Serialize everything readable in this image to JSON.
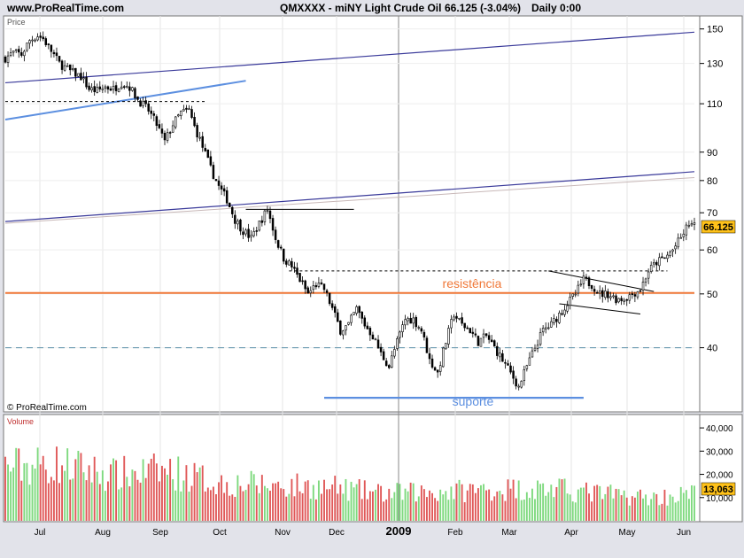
{
  "header": {
    "site": "www.ProRealTime.com",
    "instrument": "QMXXXX - miNY Light Crude Oil",
    "last_change": "66.125 (-3.04%)",
    "period": "Daily  0:00"
  },
  "price_panel": {
    "label": "Price",
    "watermark": "© ProRealTime.com"
  },
  "volume_panel": {
    "label": "Volume"
  },
  "annotations": {
    "resistance": "resistência",
    "support": "suporte"
  },
  "colors": {
    "up": "#ffffff",
    "down": "#000000",
    "orange": "#f07838",
    "blue_line": "#5c8fe0",
    "navy_line": "#3a3a9a",
    "volume_green": "#7ed97e",
    "volume_red": "#e05858",
    "price_tag": "#ffc21a"
  },
  "chart_data": [
    {
      "type": "candlestick",
      "title": "QMXXXX - miNY Light Crude Oil",
      "yscale": "log",
      "ylim": [
        31,
        156
      ],
      "yticks": [
        40,
        50,
        60,
        70,
        80,
        90,
        110,
        130,
        150
      ],
      "last_value": "66.125",
      "months": [
        "Jul",
        "Aug",
        "Sep",
        "Oct",
        "Nov",
        "Dec",
        "2009",
        "Feb",
        "Mar",
        "Apr",
        "May",
        "Jun"
      ],
      "anchors": [
        [
          0,
          133
        ],
        [
          3,
          136
        ],
        [
          6,
          135
        ],
        [
          9,
          143
        ],
        [
          12,
          146
        ],
        [
          14,
          144
        ],
        [
          17,
          137
        ],
        [
          20,
          130
        ],
        [
          24,
          126
        ],
        [
          28,
          123
        ],
        [
          31,
          117
        ],
        [
          34,
          116
        ],
        [
          37,
          118
        ],
        [
          40,
          117
        ],
        [
          43,
          120
        ],
        [
          46,
          118
        ],
        [
          49,
          112
        ],
        [
          53,
          107
        ],
        [
          56,
          101
        ],
        [
          59,
          94
        ],
        [
          62,
          101
        ],
        [
          65,
          106
        ],
        [
          68,
          107
        ],
        [
          70,
          100
        ],
        [
          73,
          92
        ],
        [
          76,
          84
        ],
        [
          79,
          78
        ],
        [
          82,
          74
        ],
        [
          85,
          68
        ],
        [
          88,
          65
        ],
        [
          91,
          63
        ],
        [
          94,
          67
        ],
        [
          97,
          71
        ],
        [
          100,
          63
        ],
        [
          103,
          58
        ],
        [
          106,
          56
        ],
        [
          109,
          53
        ],
        [
          112,
          50
        ],
        [
          115,
          52
        ],
        [
          118,
          51
        ],
        [
          121,
          47
        ],
        [
          124,
          43
        ],
        [
          127,
          44
        ],
        [
          130,
          47
        ],
        [
          133,
          44
        ],
        [
          136,
          42
        ],
        [
          139,
          39
        ],
        [
          142,
          37
        ],
        [
          145,
          41
        ],
        [
          148,
          45
        ],
        [
          151,
          45
        ],
        [
          154,
          43
        ],
        [
          157,
          38
        ],
        [
          160,
          36
        ],
        [
          163,
          41
        ],
        [
          166,
          46
        ],
        [
          169,
          44
        ],
        [
          172,
          43
        ],
        [
          175,
          41
        ],
        [
          178,
          42
        ],
        [
          181,
          40
        ],
        [
          184,
          38
        ],
        [
          187,
          36
        ],
        [
          190,
          34
        ],
        [
          193,
          37
        ],
        [
          196,
          40
        ],
        [
          199,
          43
        ],
        [
          202,
          44
        ],
        [
          205,
          46
        ],
        [
          208,
          48
        ],
        [
          211,
          50
        ],
        [
          214,
          53
        ],
        [
          217,
          52
        ],
        [
          220,
          50
        ],
        [
          223,
          50
        ],
        [
          226,
          49
        ],
        [
          229,
          49
        ],
        [
          232,
          50
        ],
        [
          235,
          51
        ],
        [
          238,
          55
        ],
        [
          241,
          57
        ],
        [
          244,
          58
        ],
        [
          247,
          60
        ],
        [
          250,
          63
        ],
        [
          253,
          67
        ],
        [
          255,
          66.125
        ]
      ],
      "trendlines": [
        {
          "style": "navy",
          "points": [
            [
              0,
              120
            ],
            [
              255,
              148
            ]
          ]
        },
        {
          "style": "navy",
          "points": [
            [
              0,
              67.5
            ],
            [
              255,
              83
            ]
          ]
        },
        {
          "style": "navy-faint",
          "points": [
            [
              0,
              67
            ],
            [
              255,
              81
            ]
          ]
        },
        {
          "style": "blue",
          "points": [
            [
              0,
              103
            ],
            [
              89,
              121
            ]
          ]
        },
        {
          "style": "black",
          "points": [
            [
              89,
              71
            ],
            [
              129,
              71
            ]
          ]
        },
        {
          "style": "black",
          "points": [
            [
              201,
              55
            ],
            [
              240,
              50.5
            ]
          ]
        },
        {
          "style": "black",
          "points": [
            [
              205,
              48
            ],
            [
              235,
              46
            ]
          ]
        },
        {
          "style": "dashed-black",
          "points": [
            [
              0,
              111
            ],
            [
              74,
              111
            ]
          ]
        },
        {
          "style": "dashed-black",
          "points": [
            [
              105,
              55
            ],
            [
              245,
              55
            ]
          ]
        },
        {
          "style": "orange",
          "points": [
            [
              0,
              50.2
            ],
            [
              255,
              50.2
            ]
          ]
        },
        {
          "style": "dashed-teal",
          "points": [
            [
              0,
              40
            ],
            [
              255,
              40
            ]
          ]
        },
        {
          "style": "blue-thick",
          "points": [
            [
              118,
              32.5
            ],
            [
              214,
              32.5
            ]
          ]
        }
      ]
    },
    {
      "type": "bar",
      "title": "Volume",
      "ylim": [
        0,
        45000
      ],
      "yticks": [
        10000,
        20000,
        30000,
        40000
      ],
      "ytick_labels": [
        "10,000",
        "20,000",
        "30,000",
        "40,000"
      ],
      "last_value": "13,063",
      "level_anchors": [
        [
          0,
          26000
        ],
        [
          20,
          27000
        ],
        [
          40,
          22000
        ],
        [
          60,
          24000
        ],
        [
          80,
          18000
        ],
        [
          100,
          17000
        ],
        [
          120,
          16000
        ],
        [
          140,
          13000
        ],
        [
          160,
          14000
        ],
        [
          180,
          15000
        ],
        [
          200,
          15500
        ],
        [
          220,
          13000
        ],
        [
          240,
          11000
        ],
        [
          255,
          13063
        ]
      ]
    }
  ]
}
